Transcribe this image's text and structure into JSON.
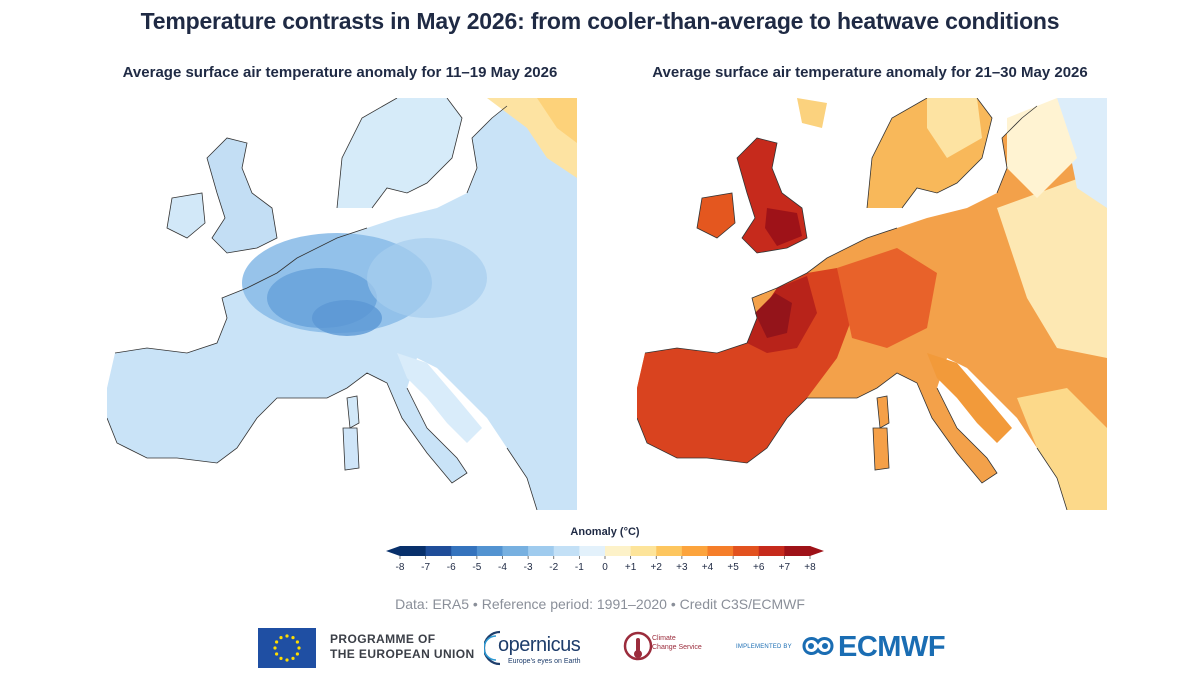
{
  "title": "Temperature contrasts in May 2026: from cooler-than-average to heatwave conditions",
  "maps": [
    {
      "subtitle": "Average surface air temperature anomaly for 11–19 May 2026",
      "anomaly_pattern": "cool"
    },
    {
      "subtitle": "Average surface air temperature anomaly for 21–30 May 2026",
      "anomaly_pattern": "warm"
    }
  ],
  "legend": {
    "title": "Anomaly (°C)",
    "ticks": [
      "-8",
      "-7",
      "-6",
      "-5",
      "-4",
      "-3",
      "-2",
      "-1",
      "0",
      "+1",
      "+2",
      "+3",
      "+4",
      "+5",
      "+6",
      "+7",
      "+8"
    ],
    "colors": [
      "#08306b",
      "#1f4d99",
      "#3573bd",
      "#5393d1",
      "#77b0e0",
      "#9fcbee",
      "#c3e0f6",
      "#e3f1fb",
      "#fdf2c9",
      "#fde49a",
      "#fdc65f",
      "#fca43d",
      "#f57e2a",
      "#e2521f",
      "#c62a1c",
      "#9e1218"
    ]
  },
  "credits": "Data: ERA5 • Reference period: 1991–2020 • Credit C3S/ECMWF",
  "logos": {
    "eu_line1": "PROGRAMME OF",
    "eu_line2": "THE EUROPEAN UNION",
    "copernicus": "opernicus",
    "copernicus_tagline": "Europe's eyes on Earth",
    "c3s_line1": "Climate",
    "c3s_line2": "Change Service",
    "implemented_by": "IMPLEMENTED BY",
    "ecmwf": "ECMWF"
  }
}
